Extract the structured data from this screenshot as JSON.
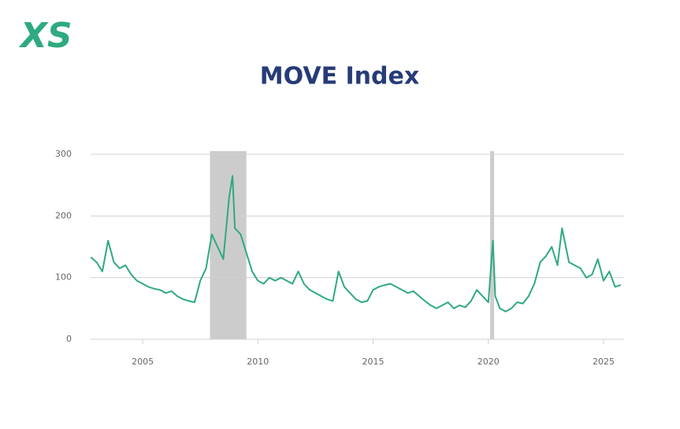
{
  "logo": "XS",
  "chart_data": {
    "type": "line",
    "title": "MOVE Index",
    "x": [
      2002.75,
      2003.0,
      2003.25,
      2003.5,
      2003.75,
      2004.0,
      2004.25,
      2004.5,
      2004.75,
      2005.0,
      2005.25,
      2005.5,
      2005.75,
      2006.0,
      2006.25,
      2006.5,
      2006.75,
      2007.0,
      2007.25,
      2007.5,
      2007.75,
      2008.0,
      2008.25,
      2008.5,
      2008.75,
      2008.9,
      2009.0,
      2009.25,
      2009.5,
      2009.75,
      2010.0,
      2010.25,
      2010.5,
      2010.75,
      2011.0,
      2011.25,
      2011.5,
      2011.75,
      2012.0,
      2012.25,
      2012.5,
      2012.75,
      2013.0,
      2013.25,
      2013.5,
      2013.75,
      2014.0,
      2014.25,
      2014.5,
      2014.75,
      2015.0,
      2015.25,
      2015.5,
      2015.75,
      2016.0,
      2016.25,
      2016.5,
      2016.75,
      2017.0,
      2017.25,
      2017.5,
      2017.75,
      2018.0,
      2018.25,
      2018.5,
      2018.75,
      2019.0,
      2019.25,
      2019.5,
      2019.75,
      2020.0,
      2020.2,
      2020.3,
      2020.5,
      2020.75,
      2021.0,
      2021.25,
      2021.5,
      2021.75,
      2022.0,
      2022.25,
      2022.5,
      2022.75,
      2023.0,
      2023.2,
      2023.5,
      2023.75,
      2024.0,
      2024.25,
      2024.5,
      2024.75,
      2025.0,
      2025.25,
      2025.5,
      2025.75
    ],
    "series": [
      {
        "name": "MOVE Index",
        "color": "#2eaa7e",
        "values": [
          133,
          125,
          110,
          160,
          125,
          115,
          120,
          105,
          95,
          90,
          85,
          82,
          80,
          75,
          78,
          70,
          65,
          62,
          60,
          95,
          115,
          170,
          150,
          130,
          230,
          265,
          180,
          170,
          140,
          110,
          95,
          90,
          100,
          95,
          100,
          95,
          90,
          110,
          90,
          80,
          75,
          70,
          65,
          62,
          110,
          85,
          75,
          65,
          60,
          62,
          80,
          85,
          88,
          90,
          85,
          80,
          75,
          78,
          70,
          62,
          55,
          50,
          55,
          60,
          50,
          55,
          52,
          62,
          80,
          70,
          60,
          160,
          70,
          50,
          45,
          50,
          60,
          58,
          70,
          90,
          125,
          135,
          150,
          120,
          180,
          125,
          120,
          115,
          100,
          105,
          130,
          95,
          110,
          85,
          88
        ]
      }
    ],
    "shaded_periods": [
      [
        2007.92,
        2009.5
      ],
      [
        2020.08,
        2020.25
      ]
    ],
    "shade_color": "#cccccc",
    "xlim": [
      2002.74,
      2025.89
    ],
    "xticks": [
      2005,
      2010,
      2015,
      2020,
      2025
    ],
    "ylim": [
      0,
      300
    ],
    "yticks": [
      0,
      100,
      200,
      300
    ],
    "grid": true
  }
}
